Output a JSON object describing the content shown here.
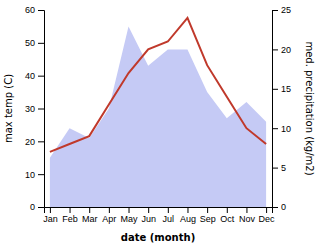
{
  "chart_data": {
    "type": "area",
    "xlabel": "date (month)",
    "ylabel": "max temp (C)",
    "y2label": "med. precipitation (kg/m2)",
    "categories": [
      "Jan",
      "Feb",
      "Mar",
      "Apr",
      "May",
      "Jun",
      "Jul",
      "Aug",
      "Sep",
      "Oct",
      "Nov",
      "Dec"
    ],
    "series": [
      {
        "type": "area",
        "color": "#c5caf5",
        "values": [
          15,
          24,
          21,
          30,
          55,
          43,
          48,
          48,
          35,
          27,
          32,
          26
        ]
      },
      {
        "type": "line",
        "color": "#c0392b",
        "axis": "y2",
        "values": [
          7,
          8,
          9,
          13,
          17,
          20,
          21,
          24,
          18,
          14,
          10,
          8
        ]
      }
    ],
    "ylim": [
      0,
      60
    ],
    "yticks": [
      0,
      10,
      20,
      30,
      40,
      50,
      60
    ],
    "y2lim": [
      0,
      25
    ],
    "y2ticks": [
      0,
      5,
      10,
      15,
      20,
      25
    ],
    "grid": false
  }
}
